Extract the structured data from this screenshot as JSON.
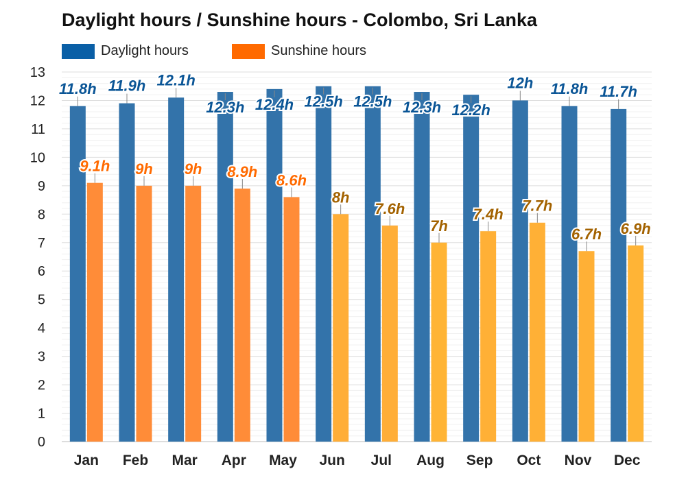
{
  "page": {
    "title": "Daylight hours / Sunshine hours - Colombo, Sri Lanka"
  },
  "legend": {
    "items": [
      {
        "label": "Daylight hours",
        "color": "#0a5fa6"
      },
      {
        "label": "Sunshine hours",
        "color": "#ff6a00"
      }
    ]
  },
  "chart_data": {
    "type": "bar",
    "title": "Daylight hours / Sunshine hours - Colombo, Sri Lanka",
    "xlabel": "",
    "ylabel": "",
    "ylim": [
      0,
      13
    ],
    "yticks": [
      0,
      1,
      2,
      3,
      4,
      5,
      6,
      7,
      8,
      9,
      10,
      11,
      12,
      13
    ],
    "grid": true,
    "legend_position": "top-left",
    "categories": [
      "Jan",
      "Feb",
      "Mar",
      "Apr",
      "May",
      "Jun",
      "Jul",
      "Aug",
      "Sep",
      "Oct",
      "Nov",
      "Dec"
    ],
    "series": [
      {
        "name": "Daylight hours",
        "values": [
          11.8,
          11.9,
          12.1,
          12.3,
          12.4,
          12.5,
          12.5,
          12.3,
          12.2,
          12,
          11.8,
          11.7
        ],
        "labels": [
          "11.8h",
          "11.9h",
          "12.1h",
          "12.3h",
          "12.4h",
          "12.5h",
          "12.5h",
          "12.3h",
          "12.2h",
          "12h",
          "11.8h",
          "11.7h"
        ],
        "color": "#3373aa",
        "label_color": "#0a5596"
      },
      {
        "name": "Sunshine hours",
        "values": [
          9.1,
          9,
          9,
          8.9,
          8.6,
          8,
          7.6,
          7,
          7.4,
          7.7,
          6.7,
          6.9
        ],
        "labels": [
          "9.1h",
          "9h",
          "9h",
          "8.9h",
          "8.6h",
          "8h",
          "7.6h",
          "7h",
          "7.4h",
          "7.7h",
          "6.7h",
          "6.9h"
        ],
        "colors": [
          "#ff8c38",
          "#ff8c38",
          "#ff8c38",
          "#ff8c38",
          "#ff8c38",
          "#ffae38",
          "#ffae38",
          "#ffb435",
          "#ffb036",
          "#ffb036",
          "#ffb036",
          "#ffb436"
        ],
        "label_colors": [
          "#ff6a00",
          "#ff6a00",
          "#ff6a00",
          "#ff6a00",
          "#ff6a00",
          "#a36200",
          "#a36200",
          "#a36200",
          "#a36200",
          "#a36200",
          "#a36200",
          "#a36200"
        ]
      }
    ]
  }
}
